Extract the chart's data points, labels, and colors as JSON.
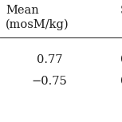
{
  "col1_header_line1": "Mean",
  "col1_header_line2": "(mosM/kg)",
  "col2_header_partial": "S",
  "col2_values_partial": [
    "0",
    "0"
  ],
  "col1_values": [
    "0.77",
    "−0.75"
  ],
  "bg_color": "#ffffff",
  "text_color": "#1a1a1a",
  "font_size": 10.5,
  "fig_width": 1.53,
  "fig_height": 1.53,
  "dpi": 100
}
